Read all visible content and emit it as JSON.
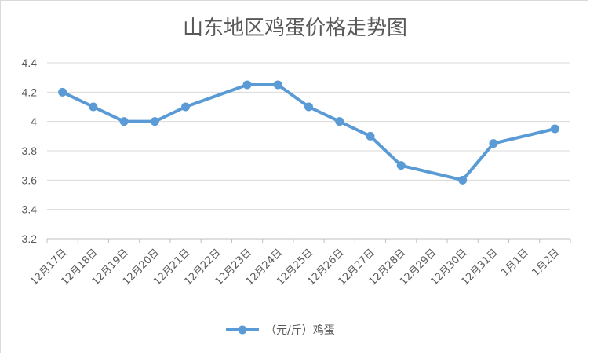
{
  "chart_data": {
    "type": "line",
    "title": "山东地区鸡蛋价格走势图",
    "xlabel": "",
    "ylabel": "",
    "categories": [
      "12月17日",
      "12月18日",
      "12月19日",
      "12月20日",
      "12月21日",
      "12月22日",
      "12月23日",
      "12月24日",
      "12月25日",
      "12月26日",
      "12月27日",
      "12月28日",
      "12月29日",
      "12月30日",
      "12月31日",
      "1月1日",
      "1月2日"
    ],
    "ylim": [
      3.2,
      4.4
    ],
    "yticks": [
      "3.2",
      "3.4",
      "3.6",
      "3.8",
      "4",
      "4.2",
      "4.4"
    ],
    "grid": true,
    "legend_position": "bottom",
    "series": [
      {
        "name": "（元/斤）鸡蛋",
        "color": "#5b9bd5",
        "values": [
          4.2,
          4.1,
          4.0,
          4.0,
          4.1,
          null,
          4.25,
          4.25,
          4.1,
          4.0,
          3.9,
          3.7,
          null,
          3.6,
          3.85,
          null,
          3.95
        ]
      }
    ]
  }
}
